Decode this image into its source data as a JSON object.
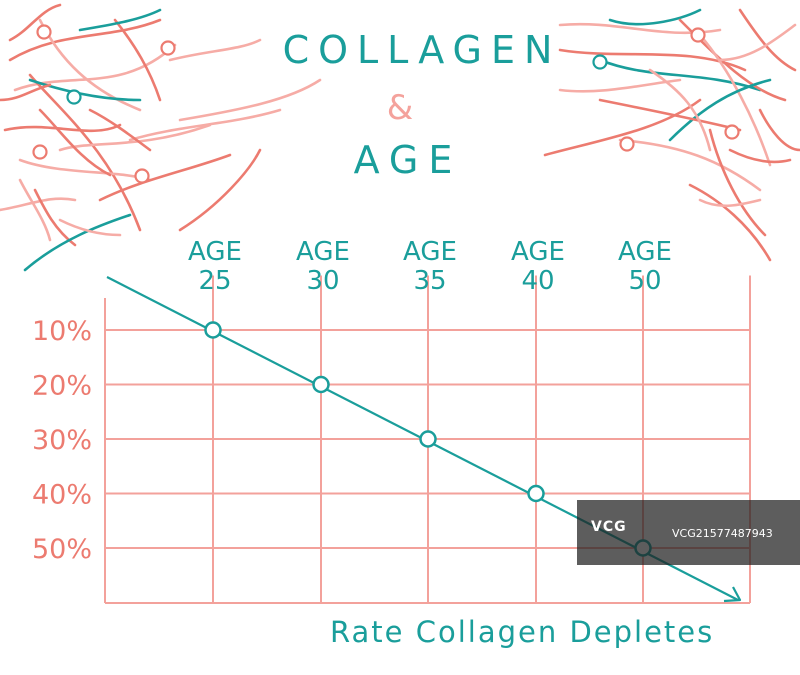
{
  "header": {
    "title_line1": "COLLAGEN",
    "title_amp": "&",
    "title_line2": "AGE"
  },
  "caption": "Rate Collagen Depletes",
  "watermark": {
    "logo": "VCG",
    "id": "VCG21577487943"
  },
  "colors": {
    "teal": "#1a9e9b",
    "coral": "#ec7b70",
    "pink": "#f6aca6",
    "grid": "#f3a19b"
  },
  "chart_data": {
    "type": "line",
    "x_labels": [
      {
        "top": "AGE",
        "bottom": "25"
      },
      {
        "top": "AGE",
        "bottom": "30"
      },
      {
        "top": "AGE",
        "bottom": "35"
      },
      {
        "top": "AGE",
        "bottom": "40"
      },
      {
        "top": "AGE",
        "bottom": "50"
      }
    ],
    "y_labels": [
      "10%",
      "20%",
      "30%",
      "40%",
      "50%"
    ],
    "values": [
      10,
      20,
      30,
      40,
      50
    ],
    "ylim": [
      0,
      60
    ],
    "grid": true,
    "series_color": "#1a9e9b"
  }
}
